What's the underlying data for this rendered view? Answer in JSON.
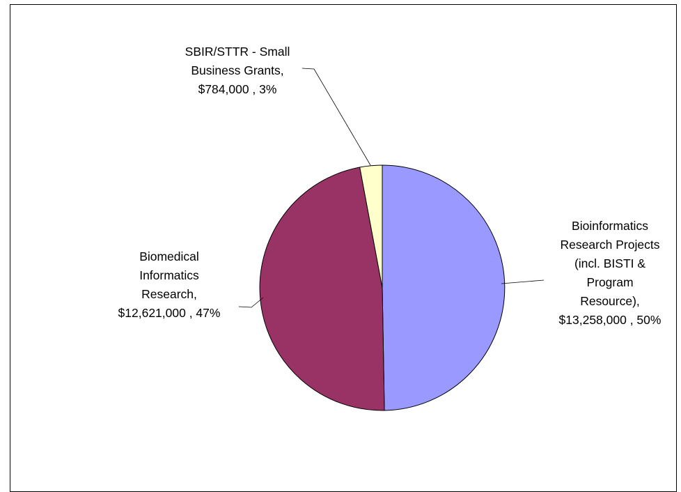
{
  "chart_data": {
    "type": "pie",
    "title": "",
    "slices": [
      {
        "label_lines": [
          "Bioinformatics",
          "Research Projects",
          "(incl. BISTI &",
          "Program",
          "Resource),",
          "$13,258,000 , 50%"
        ],
        "value": 13258000,
        "percent": 50,
        "color": "#9999FF"
      },
      {
        "label_lines": [
          "Biomedical",
          "Informatics",
          "Research,",
          "$12,621,000 , 47%"
        ],
        "value": 12621000,
        "percent": 47,
        "color": "#993366"
      },
      {
        "label_lines": [
          "SBIR/STTR - Small",
          "Business Grants,",
          "$784,000 , 3%"
        ],
        "value": 784000,
        "percent": 3,
        "color": "#FFFFCC"
      }
    ],
    "legend": "none"
  }
}
